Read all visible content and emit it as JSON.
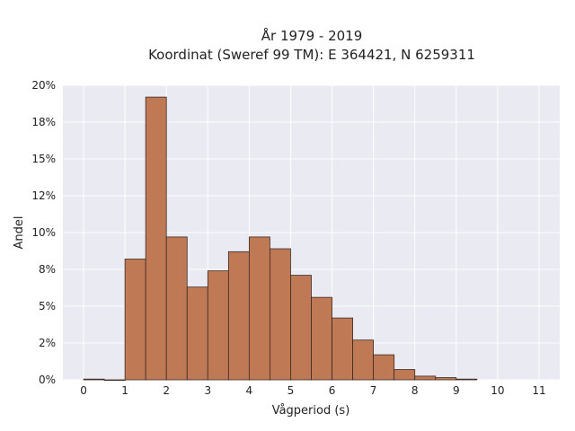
{
  "chart_data": {
    "type": "bar",
    "title": "År 1979 - 2019",
    "subtitle": "Koordinat (Sweref 99 TM): E 364421, N 6259311",
    "xlabel": "Vågperiod (s)",
    "ylabel": "Andel",
    "bin_width": 0.5,
    "bins": [
      {
        "start": 0.0,
        "value": 0.05
      },
      {
        "start": 0.5,
        "value": 0.0
      },
      {
        "start": 1.0,
        "value": 8.2
      },
      {
        "start": 1.5,
        "value": 19.2
      },
      {
        "start": 2.0,
        "value": 9.7
      },
      {
        "start": 2.5,
        "value": 6.3
      },
      {
        "start": 3.0,
        "value": 7.4
      },
      {
        "start": 3.5,
        "value": 8.7
      },
      {
        "start": 4.0,
        "value": 9.7
      },
      {
        "start": 4.5,
        "value": 8.9
      },
      {
        "start": 5.0,
        "value": 7.1
      },
      {
        "start": 5.5,
        "value": 5.6
      },
      {
        "start": 6.0,
        "value": 4.2
      },
      {
        "start": 6.5,
        "value": 2.7
      },
      {
        "start": 7.0,
        "value": 1.7
      },
      {
        "start": 7.5,
        "value": 0.7
      },
      {
        "start": 8.0,
        "value": 0.25
      },
      {
        "start": 8.5,
        "value": 0.15
      },
      {
        "start": 9.0,
        "value": 0.05
      }
    ],
    "xlim": [
      -0.5,
      11.5
    ],
    "ylim": [
      0,
      20
    ],
    "xticks": [
      "0",
      "1",
      "2",
      "3",
      "4",
      "5",
      "6",
      "7",
      "8",
      "9",
      "10",
      "11"
    ],
    "yticks": [
      "0%",
      "2%",
      "5%",
      "8%",
      "10%",
      "12%",
      "15%",
      "18%",
      "20%"
    ],
    "grid": true,
    "colors": {
      "bar_fill": "#bf7a55",
      "bar_edge": "#3b2a22",
      "plot_background": "#eaeaf2",
      "grid": "#ffffff"
    }
  }
}
